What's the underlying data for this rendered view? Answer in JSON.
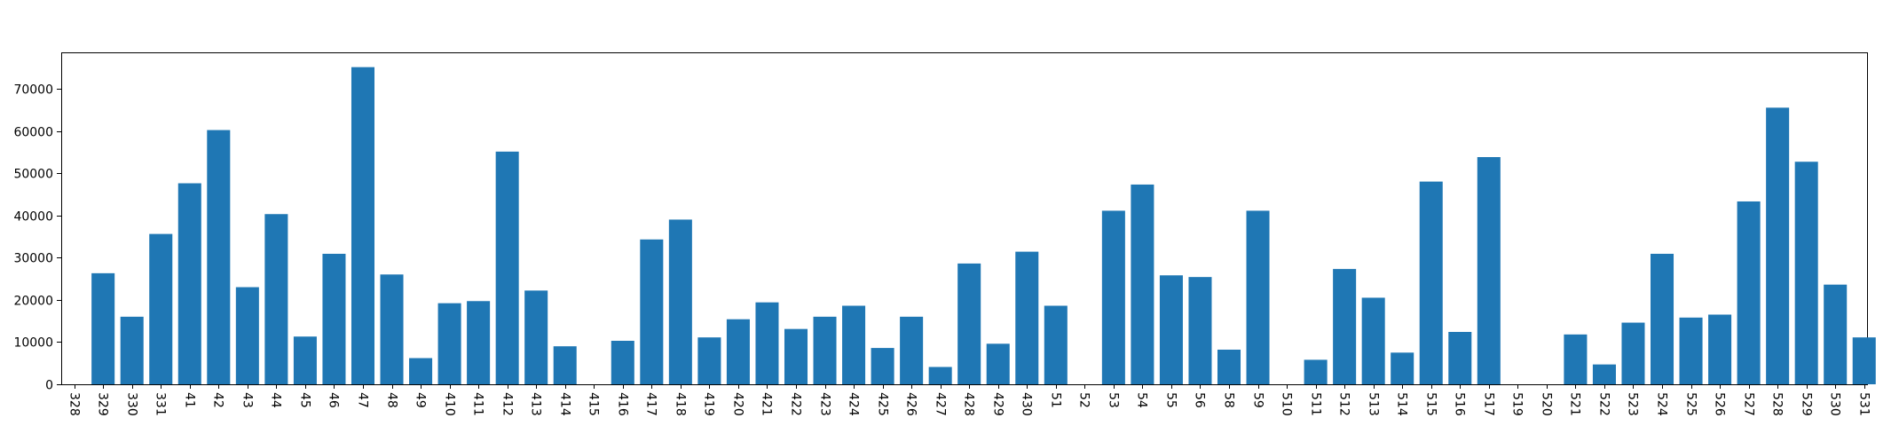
{
  "chart_data": {
    "type": "bar",
    "categories": [
      "328",
      "329",
      "330",
      "331",
      "41",
      "42",
      "43",
      "44",
      "45",
      "46",
      "47",
      "48",
      "49",
      "410",
      "411",
      "412",
      "413",
      "414",
      "415",
      "416",
      "417",
      "418",
      "419",
      "420",
      "421",
      "422",
      "423",
      "424",
      "425",
      "426",
      "427",
      "428",
      "429",
      "430",
      "51",
      "52",
      "53",
      "54",
      "55",
      "56",
      "58",
      "59",
      "510",
      "511",
      "512",
      "513",
      "514",
      "515",
      "516",
      "517",
      "519",
      "520",
      "521",
      "522",
      "523",
      "524",
      "525",
      "526",
      "527",
      "528",
      "529",
      "530",
      "531"
    ],
    "values": [
      0,
      26300,
      16000,
      35600,
      47600,
      60200,
      23000,
      40300,
      11300,
      30900,
      75100,
      26000,
      6200,
      19200,
      19700,
      55100,
      22200,
      9000,
      0,
      10300,
      34300,
      39000,
      11100,
      15400,
      19400,
      13100,
      16000,
      18600,
      8600,
      16000,
      4100,
      28600,
      9600,
      31400,
      18600,
      0,
      41100,
      47300,
      25800,
      25400,
      8200,
      41100,
      0,
      5800,
      27300,
      20500,
      7500,
      48000,
      12400,
      53800,
      0,
      0,
      11800,
      4700,
      14600,
      30900,
      15800,
      16500,
      43300,
      65500,
      52700,
      23600,
      11100
    ],
    "title": "",
    "xlabel": "",
    "ylabel": "",
    "ylim": [
      0,
      78600
    ],
    "yticks": [
      0,
      10000,
      20000,
      30000,
      40000,
      50000,
      60000,
      70000
    ],
    "ytick_labels": [
      "0",
      "10000",
      "20000",
      "30000",
      "40000",
      "50000",
      "60000",
      "70000"
    ],
    "grid": false,
    "legend": false,
    "bar_color": "#1f77b4"
  }
}
